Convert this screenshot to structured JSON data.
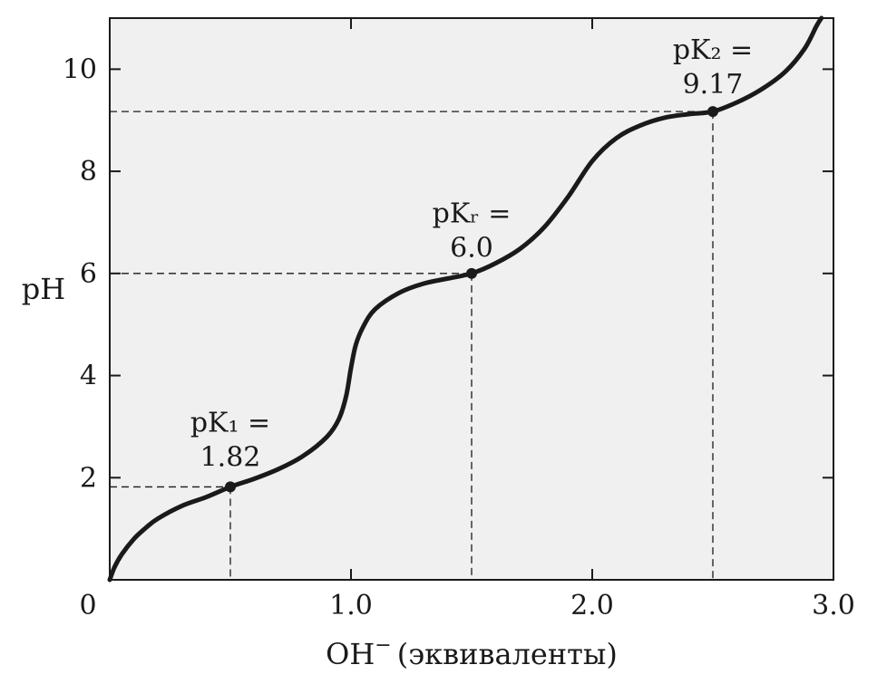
{
  "chart_data": {
    "type": "line",
    "xlabel": "OH",
    "xlabel_superscript": "−",
    "xlabel_suffix": "(эквиваленты)",
    "ylabel": "pH",
    "xlim": [
      0,
      3.0
    ],
    "ylim": [
      0,
      11
    ],
    "x_ticks": [
      {
        "value": 0,
        "label": "0"
      },
      {
        "value": 1.0,
        "label": "1.0"
      },
      {
        "value": 2.0,
        "label": "2.0"
      },
      {
        "value": 3.0,
        "label": "3.0"
      }
    ],
    "y_ticks": [
      {
        "value": 2,
        "label": "2"
      },
      {
        "value": 4,
        "label": "4"
      },
      {
        "value": 6,
        "label": "6"
      },
      {
        "value": 8,
        "label": "8"
      },
      {
        "value": 10,
        "label": "10"
      }
    ],
    "grid": false,
    "background": "#f0f0f0",
    "line_color": "#1a1a1a",
    "series": [
      {
        "points": [
          [
            0.0,
            0.0
          ],
          [
            0.02,
            0.25
          ],
          [
            0.05,
            0.5
          ],
          [
            0.1,
            0.8
          ],
          [
            0.15,
            1.02
          ],
          [
            0.2,
            1.2
          ],
          [
            0.3,
            1.45
          ],
          [
            0.4,
            1.62
          ],
          [
            0.5,
            1.82
          ],
          [
            0.6,
            1.98
          ],
          [
            0.7,
            2.17
          ],
          [
            0.8,
            2.42
          ],
          [
            0.9,
            2.8
          ],
          [
            0.95,
            3.15
          ],
          [
            0.98,
            3.6
          ],
          [
            1.0,
            4.15
          ],
          [
            1.02,
            4.6
          ],
          [
            1.05,
            4.95
          ],
          [
            1.1,
            5.3
          ],
          [
            1.2,
            5.62
          ],
          [
            1.3,
            5.8
          ],
          [
            1.4,
            5.9
          ],
          [
            1.5,
            6.0
          ],
          [
            1.6,
            6.2
          ],
          [
            1.7,
            6.48
          ],
          [
            1.8,
            6.9
          ],
          [
            1.9,
            7.5
          ],
          [
            2.0,
            8.2
          ],
          [
            2.1,
            8.65
          ],
          [
            2.2,
            8.9
          ],
          [
            2.3,
            9.05
          ],
          [
            2.4,
            9.12
          ],
          [
            2.5,
            9.17
          ],
          [
            2.6,
            9.35
          ],
          [
            2.7,
            9.6
          ],
          [
            2.8,
            9.95
          ],
          [
            2.88,
            10.4
          ],
          [
            2.93,
            10.85
          ],
          [
            2.95,
            11.0
          ]
        ]
      }
    ],
    "annotations": [
      {
        "x": 0.5,
        "y": 1.82,
        "line1": "pK₁ =",
        "line2": "1.82",
        "label_anchor_x": 0.5,
        "label_top_y": 2.9
      },
      {
        "x": 1.5,
        "y": 6.0,
        "line1": "pKᵣ =",
        "line2": "6.0",
        "label_anchor_x": 1.5,
        "label_top_y": 7.0
      },
      {
        "x": 2.5,
        "y": 9.17,
        "line1": "pK₂ =",
        "line2": "9.17",
        "label_anchor_x": 2.5,
        "label_top_y": 10.2
      }
    ]
  }
}
